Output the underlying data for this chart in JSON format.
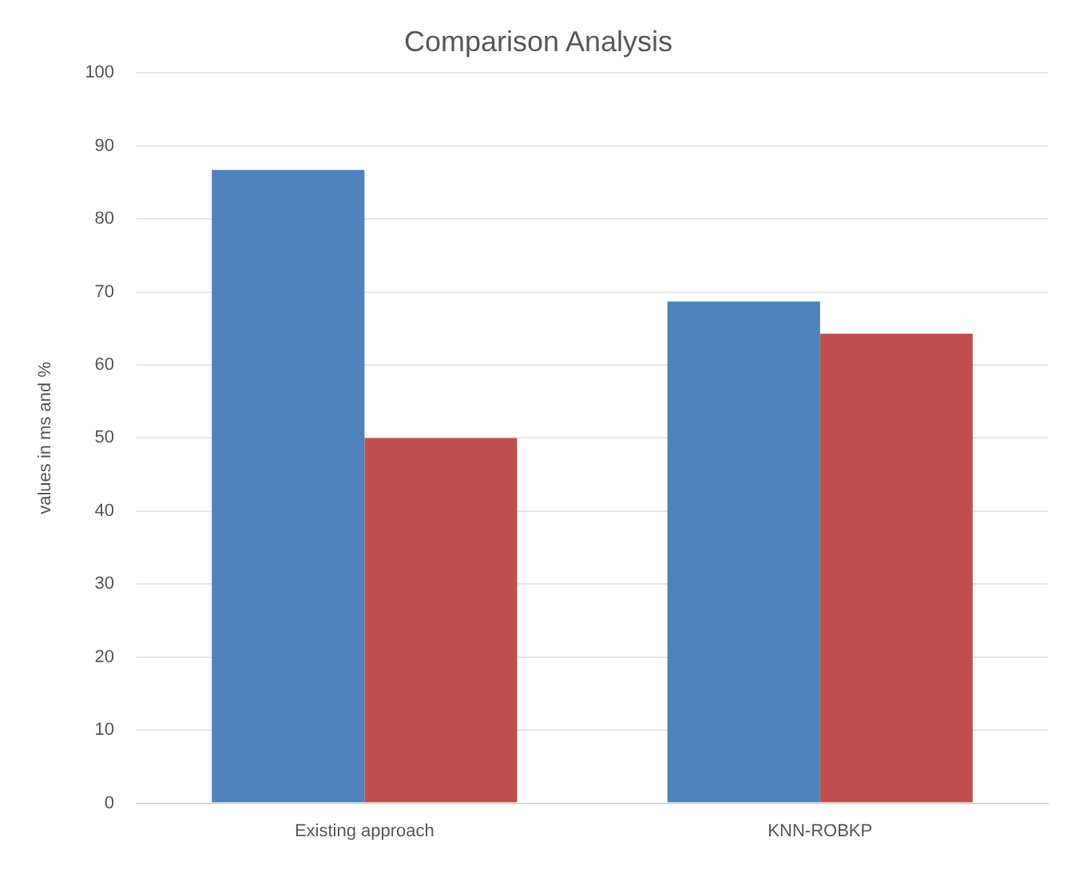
{
  "chart_data": {
    "type": "bar",
    "title": "Comparison Analysis",
    "ylabel": "values in ms and %",
    "categories": [
      "Existing approach",
      "KNN-ROBKP"
    ],
    "series": [
      {
        "color": "#4f81bd",
        "values": [
          86.7,
          68.7
        ]
      },
      {
        "color": "#c0504d",
        "values": [
          50,
          64.3
        ]
      }
    ],
    "ylim": [
      0,
      100
    ],
    "yticks": [
      0,
      10,
      20,
      30,
      40,
      50,
      60,
      70,
      80,
      90,
      100
    ],
    "grid": "y",
    "legend": false
  }
}
